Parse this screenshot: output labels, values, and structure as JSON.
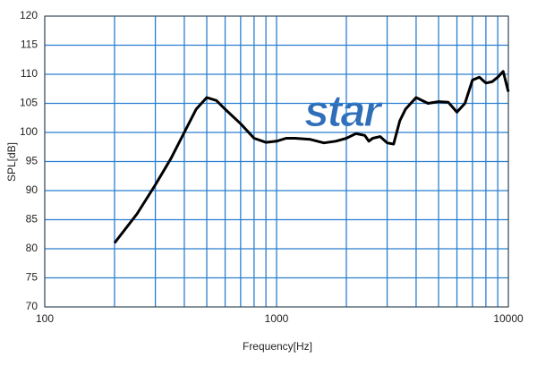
{
  "chart_data": {
    "type": "line",
    "xlabel": "Frequency[Hz]",
    "ylabel": "SPL[dB]",
    "watermark": "star",
    "xscale": "log",
    "xlim": [
      100,
      10000
    ],
    "ylim": [
      70,
      120
    ],
    "xticks": [
      100,
      1000,
      10000
    ],
    "x_minor_grid": [
      200,
      300,
      400,
      500,
      600,
      700,
      800,
      900,
      2000,
      3000,
      4000,
      5000,
      6000,
      7000,
      8000,
      9000
    ],
    "yticks": [
      70,
      75,
      80,
      85,
      90,
      95,
      100,
      105,
      110,
      115,
      120
    ],
    "grid": true,
    "grid_color": "#2a7fd0",
    "series": [
      {
        "name": "SPL",
        "color": "#000000",
        "x": [
          200,
          250,
          300,
          350,
          400,
          450,
          500,
          550,
          600,
          700,
          800,
          900,
          1000,
          1100,
          1200,
          1400,
          1600,
          1800,
          2000,
          2200,
          2400,
          2500,
          2600,
          2800,
          3000,
          3200,
          3400,
          3600,
          4000,
          4500,
          5000,
          5500,
          6000,
          6500,
          7000,
          7500,
          8000,
          8500,
          9000,
          9500,
          10000
        ],
        "values": [
          81,
          86,
          91,
          95.5,
          100,
          104,
          106,
          105.5,
          104,
          101.5,
          99,
          98.3,
          98.5,
          99,
          99,
          98.8,
          98.2,
          98.5,
          99,
          99.8,
          99.5,
          98.5,
          99,
          99.3,
          98.2,
          98,
          102,
          104,
          106,
          105,
          105.3,
          105.2,
          103.5,
          105,
          109,
          109.5,
          108.5,
          108.7,
          109.5,
          110.5,
          107
        ]
      }
    ]
  }
}
